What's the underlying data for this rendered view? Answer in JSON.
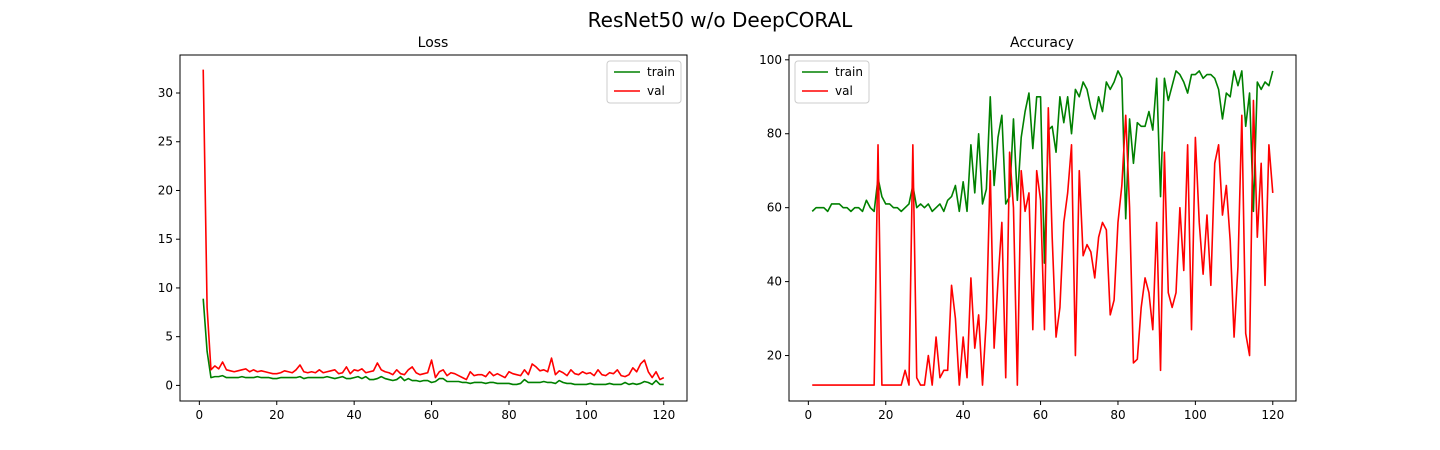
{
  "figure": {
    "title": "ResNet50 w/o DeepCORAL",
    "colors": {
      "train": "#008000",
      "val": "#ff0000",
      "axis": "#000000",
      "legend_border": "#cccccc"
    }
  },
  "chart_data": [
    {
      "type": "line",
      "title": "Loss",
      "xlabel": "",
      "ylabel": "",
      "xlim": [
        -5,
        126
      ],
      "ylim": [
        -1.6,
        33.9
      ],
      "xticks": [
        0,
        20,
        40,
        60,
        80,
        100,
        120
      ],
      "yticks": [
        0,
        5,
        10,
        15,
        20,
        25,
        30
      ],
      "grid": false,
      "legend": "upper right",
      "series": [
        {
          "name": "train",
          "color": "#008000",
          "x_start": 1,
          "values": [
            8.9,
            3.5,
            0.8,
            0.9,
            0.9,
            1.0,
            0.8,
            0.8,
            0.8,
            0.8,
            0.9,
            0.8,
            0.8,
            0.8,
            0.9,
            0.8,
            0.8,
            0.8,
            0.7,
            0.7,
            0.8,
            0.8,
            0.8,
            0.8,
            0.8,
            0.9,
            0.7,
            0.8,
            0.8,
            0.8,
            0.8,
            0.8,
            0.9,
            0.8,
            0.7,
            0.8,
            0.9,
            0.7,
            0.7,
            0.8,
            0.9,
            0.7,
            0.9,
            0.6,
            0.6,
            0.7,
            0.9,
            0.7,
            0.6,
            0.5,
            0.6,
            0.9,
            0.5,
            0.7,
            0.5,
            0.5,
            0.4,
            0.5,
            0.5,
            0.3,
            0.4,
            0.7,
            0.7,
            0.4,
            0.4,
            0.4,
            0.4,
            0.3,
            0.3,
            0.2,
            0.3,
            0.3,
            0.3,
            0.2,
            0.3,
            0.3,
            0.2,
            0.2,
            0.2,
            0.2,
            0.1,
            0.1,
            0.2,
            0.6,
            0.3,
            0.3,
            0.3,
            0.3,
            0.4,
            0.3,
            0.3,
            0.2,
            0.5,
            0.3,
            0.2,
            0.2,
            0.1,
            0.1,
            0.1,
            0.1,
            0.2,
            0.1,
            0.1,
            0.1,
            0.1,
            0.2,
            0.1,
            0.1,
            0.1,
            0.3,
            0.1,
            0.2,
            0.1,
            0.2,
            0.4,
            0.3,
            0.1,
            0.5,
            0.1,
            0.1
          ]
        },
        {
          "name": "val",
          "color": "#ff0000",
          "x_start": 1,
          "values": [
            32.4,
            8.0,
            1.6,
            2.0,
            1.7,
            2.4,
            1.6,
            1.5,
            1.4,
            1.5,
            1.6,
            1.7,
            1.4,
            1.6,
            1.4,
            1.5,
            1.4,
            1.3,
            1.2,
            1.2,
            1.3,
            1.5,
            1.4,
            1.3,
            1.6,
            2.1,
            1.4,
            1.3,
            1.4,
            1.3,
            1.6,
            1.3,
            1.4,
            1.5,
            1.6,
            1.2,
            1.3,
            1.9,
            1.2,
            1.6,
            1.5,
            1.7,
            1.3,
            1.4,
            1.5,
            2.3,
            1.6,
            1.4,
            1.3,
            1.1,
            1.6,
            1.2,
            1.1,
            1.6,
            1.9,
            1.3,
            1.1,
            1.2,
            1.3,
            2.6,
            0.8,
            1.4,
            1.6,
            1.0,
            1.3,
            1.2,
            1.0,
            0.8,
            0.6,
            1.4,
            1.0,
            1.1,
            1.1,
            0.9,
            1.4,
            1.0,
            1.2,
            1.0,
            0.8,
            1.4,
            1.2,
            1.1,
            1.0,
            1.6,
            1.1,
            2.2,
            1.9,
            1.5,
            1.6,
            1.4,
            2.8,
            1.1,
            1.5,
            1.3,
            1.0,
            1.6,
            1.2,
            1.1,
            1.4,
            1.2,
            1.3,
            1.0,
            1.6,
            1.1,
            1.0,
            1.3,
            1.2,
            1.6,
            1.0,
            0.9,
            1.1,
            1.8,
            1.4,
            2.2,
            2.6,
            1.4,
            0.8,
            1.4,
            0.6,
            0.8
          ]
        }
      ]
    },
    {
      "type": "line",
      "title": "Accuracy",
      "xlabel": "",
      "ylabel": "",
      "xlim": [
        -5,
        126
      ],
      "ylim": [
        7.7,
        101.3
      ],
      "xticks": [
        0,
        20,
        40,
        60,
        80,
        100,
        120
      ],
      "yticks": [
        20,
        40,
        60,
        80,
        100
      ],
      "grid": false,
      "legend": "upper left",
      "series": [
        {
          "name": "train",
          "color": "#008000",
          "x_start": 1,
          "values": [
            59,
            60,
            60,
            60,
            59,
            61,
            61,
            61,
            60,
            60,
            59,
            60,
            60,
            59,
            62,
            60,
            59,
            68,
            63,
            61,
            61,
            60,
            60,
            59,
            60,
            61,
            66,
            60,
            61,
            60,
            61,
            59,
            60,
            61,
            59,
            62,
            63,
            66,
            59,
            67,
            59,
            77,
            64,
            80,
            61,
            65,
            90,
            66,
            79,
            85,
            61,
            63,
            84,
            62,
            79,
            86,
            91,
            76,
            90,
            90,
            45,
            81,
            82,
            75,
            90,
            83,
            90,
            80,
            92,
            90,
            94,
            92,
            87,
            84,
            90,
            86,
            94,
            92,
            94,
            97,
            95,
            57,
            84,
            72,
            83,
            82,
            82,
            86,
            81,
            95,
            63,
            95,
            89,
            93,
            97,
            96,
            94,
            91,
            96,
            96,
            97,
            95,
            96,
            96,
            95,
            92,
            84,
            91,
            90,
            97,
            93,
            97,
            82,
            91,
            59,
            94,
            92,
            94,
            93,
            97
          ]
        },
        {
          "name": "val",
          "color": "#ff0000",
          "x_start": 1,
          "values": [
            12,
            12,
            12,
            12,
            12,
            12,
            12,
            12,
            12,
            12,
            12,
            12,
            12,
            12,
            12,
            12,
            12,
            77,
            12,
            12,
            12,
            12,
            12,
            12,
            16,
            12,
            77,
            14,
            12,
            12,
            20,
            12,
            25,
            14,
            16,
            16,
            39,
            30,
            12,
            25,
            14,
            41,
            22,
            31,
            12,
            30,
            70,
            22,
            40,
            56,
            14,
            75,
            60,
            12,
            70,
            59,
            64,
            27,
            70,
            62,
            27,
            87,
            52,
            25,
            33,
            56,
            64,
            77,
            20,
            70,
            47,
            50,
            48,
            41,
            52,
            56,
            54,
            31,
            35,
            56,
            66,
            85,
            60,
            18,
            19,
            33,
            41,
            37,
            27,
            56,
            16,
            75,
            37,
            33,
            37,
            60,
            43,
            77,
            27,
            79,
            56,
            42,
            58,
            39,
            72,
            77,
            58,
            66,
            51,
            25,
            44,
            85,
            26,
            20,
            89,
            52,
            72,
            39,
            77,
            64
          ]
        }
      ]
    }
  ]
}
